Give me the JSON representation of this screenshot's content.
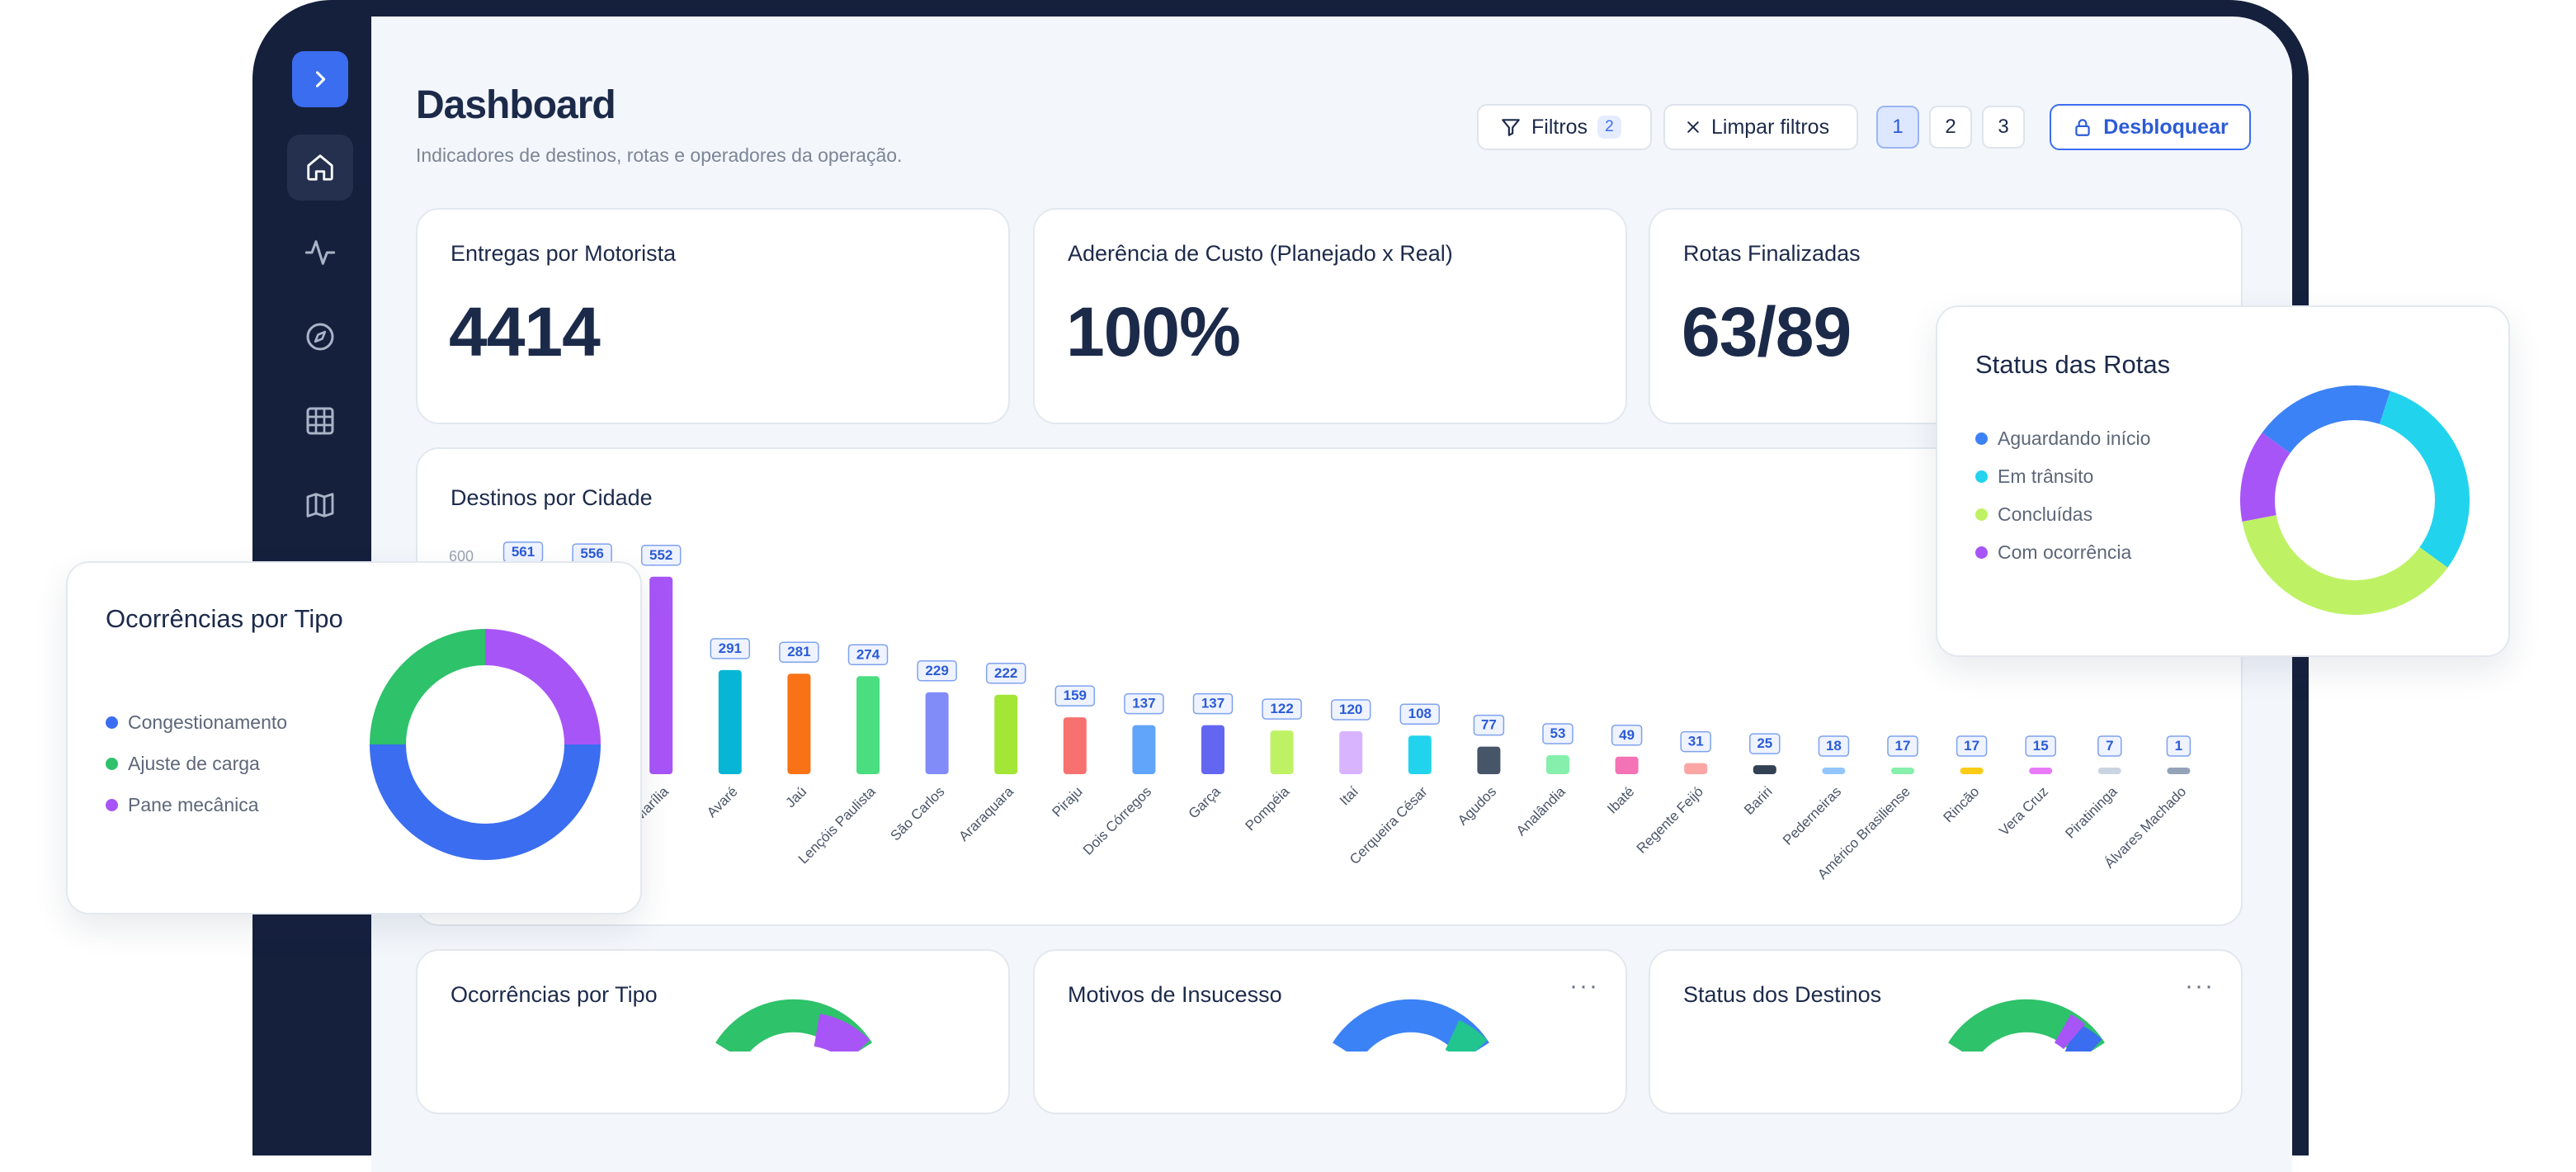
{
  "header": {
    "title": "Dashboard",
    "subtitle": "Indicadores de destinos, rotas e operadores da operação.",
    "filters_label": "Filtros",
    "filters_count": "2",
    "clear_label": "Limpar filtros",
    "pages": [
      "1",
      "2",
      "3"
    ],
    "active_page": "1",
    "unlock_label": "Desbloquear"
  },
  "sidebar": {
    "icons": [
      "chevron-right-icon",
      "home-icon",
      "activity-icon",
      "compass-icon",
      "grid-icon",
      "map-icon"
    ]
  },
  "kpis": [
    {
      "label": "Entregas por Motorista",
      "value": "4414"
    },
    {
      "label": "Aderência de Custo (Planejado x Real)",
      "value": "100%"
    },
    {
      "label": "Rotas Finalizadas",
      "value": "63/89"
    }
  ],
  "status_rotas": {
    "title": "Status das Rotas",
    "legend": [
      "Aguardando início",
      "Em trânsito",
      "Concluídas",
      "Com ocorrência"
    ],
    "colors": [
      "#3b82f6",
      "#22d3ee",
      "#bef264",
      "#a855f7"
    ],
    "fractions": [
      0.2,
      0.3,
      0.37,
      0.13
    ]
  },
  "ocorrencias_float": {
    "title": "Ocorrências por Tipo",
    "legend": [
      "Congestionamento",
      "Ajuste de carga",
      "Pane mecânica"
    ],
    "colors": [
      "#3b6df0",
      "#2ec26a",
      "#a855f7"
    ],
    "fractions": [
      0.5,
      0.25,
      0.25
    ]
  },
  "bottom_cards": [
    {
      "title": "Ocorrências por Tipo",
      "menu": ""
    },
    {
      "title": "Motivos de Insucesso",
      "menu": "···"
    },
    {
      "title": "Status dos Destinos",
      "menu": "···"
    }
  ],
  "chart_data": {
    "type": "bar",
    "title": "Destinos por Cidade",
    "y_tick_visible": "600",
    "categories": [
      "",
      "",
      "Marília",
      "Avaré",
      "Jaú",
      "Lençóis Paulista",
      "São Carlos",
      "Araraquara",
      "Piraju",
      "Dois Córregos",
      "Garça",
      "Pompéia",
      "Itaí",
      "Cerqueira César",
      "Agudos",
      "Analândia",
      "Ibaté",
      "Regente Feijó",
      "Bariri",
      "Pederneiras",
      "Américo Brasiliense",
      "Rincão",
      "Vera Cruz",
      "Piratininga",
      "Álvares Machado"
    ],
    "values": [
      561,
      556,
      552,
      291,
      281,
      274,
      229,
      222,
      159,
      137,
      137,
      122,
      120,
      108,
      77,
      53,
      49,
      31,
      25,
      18,
      17,
      17,
      15,
      7,
      1
    ],
    "colors": [
      "#3b6df0",
      "#14b8a6",
      "#a855f7",
      "#06b6d4",
      "#f97316",
      "#4ade80",
      "#818cf8",
      "#a3e635",
      "#f87171",
      "#60a5fa",
      "#6366f1",
      "#bef264",
      "#d8b4fe",
      "#22d3ee",
      "#475569",
      "#86efac",
      "#f472b6",
      "#fca5a5",
      "#334155",
      "#93c5fd",
      "#86efac",
      "#facc15",
      "#e879f9",
      "#cbd5e1",
      "#94a3b8"
    ],
    "ylim": [
      0,
      600
    ]
  }
}
